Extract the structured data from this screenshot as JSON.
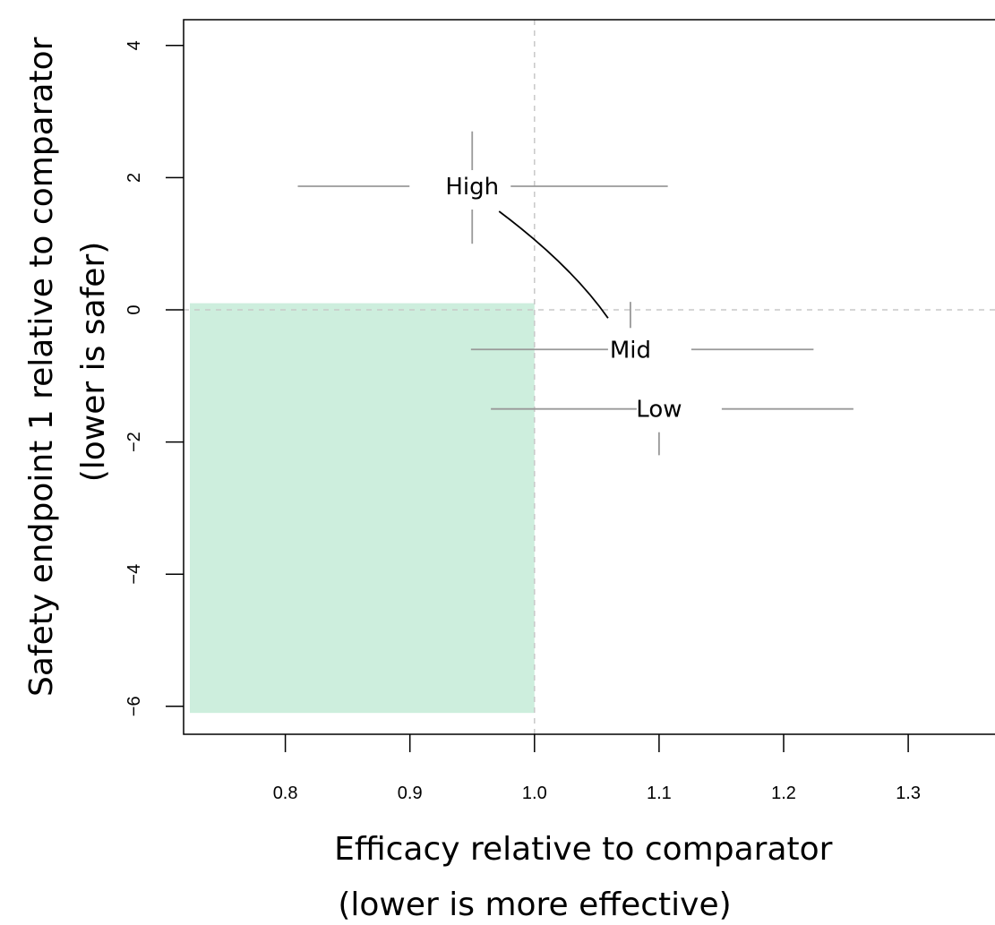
{
  "chart_data": {
    "type": "scatter",
    "title": "",
    "xlabel": [
      "Efficacy relative to comparator",
      "(lower is more effective)"
    ],
    "ylabel": [
      "Safety endpoint 1 relative to comparator",
      "(lower is safer)"
    ],
    "xlim": [
      0.72,
      1.37
    ],
    "ylim": [
      -6.5,
      4.4
    ],
    "x_ticks": [
      0.8,
      0.9,
      1.0,
      1.1,
      1.2,
      1.3
    ],
    "x_tick_labels": [
      "0.8",
      "0.9",
      "1.0",
      "1.1",
      "1.2",
      "1.3"
    ],
    "y_ticks": [
      -6,
      -4,
      -2,
      0,
      2,
      4
    ],
    "y_tick_labels": [
      "−6",
      "−4",
      "−2",
      "0",
      "2",
      "4"
    ],
    "reference_lines": {
      "x": 1.0,
      "y": 0
    },
    "favourable_region": {
      "x": [
        0.72,
        1.0
      ],
      "y": [
        -6.1,
        0.1
      ],
      "color": "#cdeedd"
    },
    "points": [
      {
        "label": "High",
        "x": 0.95,
        "y": 1.87,
        "x_interval": [
          0.81,
          1.107
        ],
        "y_interval": [
          1.0,
          2.7
        ]
      },
      {
        "label": "Mid",
        "x": 1.077,
        "y": -0.6,
        "x_interval": [
          0.949,
          1.224
        ],
        "y_interval": [
          -0.6,
          0.12
        ]
      },
      {
        "label": "Low",
        "x": 1.1,
        "y": -1.5,
        "x_interval": [
          0.965,
          1.256
        ],
        "y_interval": [
          -2.2,
          -1.5
        ]
      }
    ],
    "connector": {
      "from": "High",
      "to": "Mid"
    },
    "grid": false,
    "colors": {
      "interval": "#999999",
      "reference": "#c8c8c8",
      "connector": "#000000"
    }
  }
}
